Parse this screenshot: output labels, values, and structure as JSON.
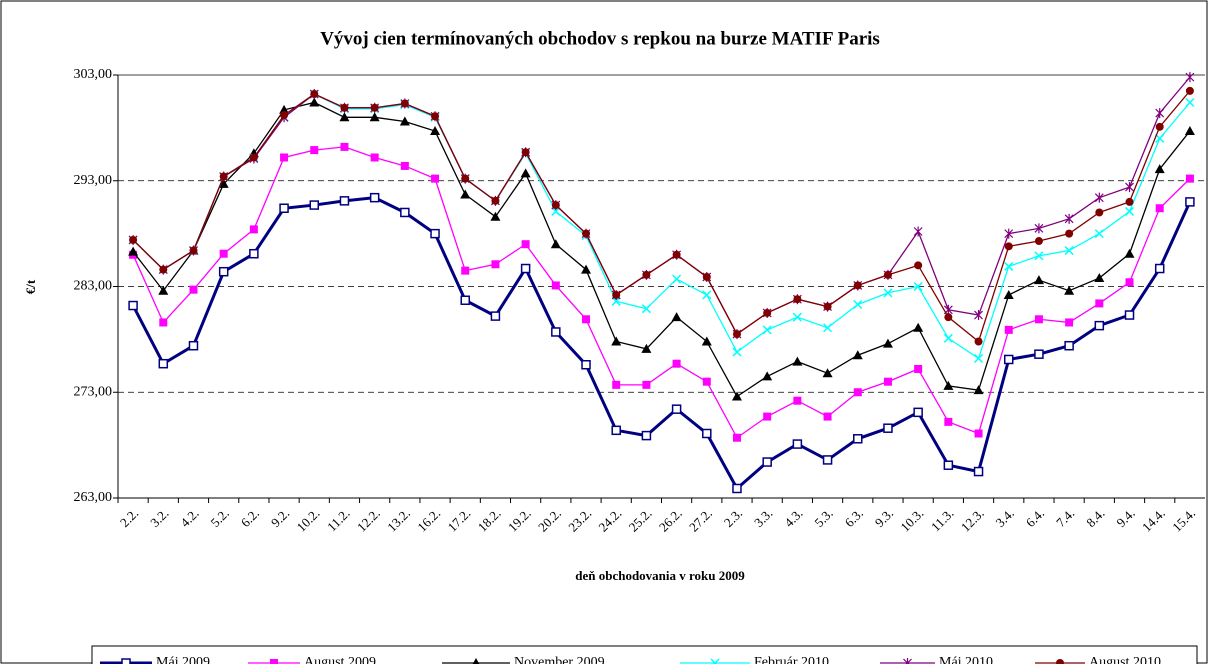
{
  "chart_data": {
    "type": "line",
    "title": "Vývoj cien termínovaných obchodov s repkou na burze MATIF Paris",
    "x_label": "deň obchodovania v roku 2009",
    "y_label": "€/t",
    "categories": [
      "2.2.",
      "3.2.",
      "4.2.",
      "5.2.",
      "6.2.",
      "9.2.",
      "10.2.",
      "11.2.",
      "12.2.",
      "13.2.",
      "16.2.",
      "17.2.",
      "18.2.",
      "19.2.",
      "20.2.",
      "23.2.",
      "24.2.",
      "25.2.",
      "26.2.",
      "27.2.",
      "2.3.",
      "3.3.",
      "4.3.",
      "5.3.",
      "6.3.",
      "9.3.",
      "10.3.",
      "11.3.",
      "12.3.",
      "3.4.",
      "6.4.",
      "7.4.",
      "8.4.",
      "9.4.",
      "14.4.",
      "15.4."
    ],
    "ylim": [
      263,
      303
    ],
    "yticks": [
      {
        "value": 263,
        "label": "263,00"
      },
      {
        "value": 273,
        "label": "273,00"
      },
      {
        "value": 283,
        "label": "283,00"
      },
      {
        "value": 293,
        "label": "293,00"
      },
      {
        "value": 303,
        "label": "303,00"
      }
    ],
    "grid": true,
    "legend": "bottom",
    "series": [
      {
        "name": "Máj  2009",
        "color": "#000080",
        "marker": "square-open",
        "values": [
          281.2,
          275.7,
          277.4,
          284.4,
          286.1,
          290.4,
          290.7,
          291.1,
          291.4,
          290.0,
          288.0,
          281.7,
          280.2,
          284.7,
          278.7,
          275.6,
          269.4,
          268.9,
          271.4,
          269.1,
          263.9,
          266.4,
          268.1,
          266.6,
          268.6,
          269.6,
          271.1,
          266.1,
          265.5,
          276.1,
          276.6,
          277.4,
          279.3,
          280.3,
          284.7,
          291.0
        ]
      },
      {
        "name": "August 2009",
        "color": "#ff00ff",
        "marker": "square",
        "values": [
          286.0,
          279.6,
          282.7,
          286.1,
          288.4,
          295.2,
          295.9,
          296.2,
          295.2,
          294.4,
          293.2,
          284.5,
          285.1,
          287.0,
          283.1,
          279.9,
          273.7,
          273.7,
          275.7,
          274.0,
          268.7,
          270.7,
          272.2,
          270.7,
          273.0,
          274.0,
          275.2,
          270.2,
          269.1,
          278.9,
          279.9,
          279.6,
          281.4,
          283.4,
          290.4,
          293.2
        ]
      },
      {
        "name": "November 2009",
        "color": "#000000",
        "marker": "triangle",
        "values": [
          286.3,
          282.6,
          286.4,
          292.7,
          295.6,
          299.7,
          300.4,
          299.0,
          299.0,
          298.6,
          297.7,
          291.7,
          289.6,
          293.7,
          287.0,
          284.6,
          277.8,
          277.1,
          280.1,
          277.8,
          272.6,
          274.5,
          275.9,
          274.8,
          276.5,
          277.6,
          279.1,
          273.6,
          273.2,
          282.2,
          283.6,
          282.6,
          283.8,
          286.1,
          294.1,
          297.7
        ]
      },
      {
        "name": "Február 2010",
        "color": "#00ffff",
        "marker": "x",
        "values": [
          287.4,
          284.6,
          286.4,
          293.4,
          295.2,
          299.0,
          301.2,
          299.8,
          299.8,
          300.2,
          299.0,
          293.2,
          291.1,
          295.6,
          290.1,
          287.8,
          281.6,
          280.9,
          283.7,
          282.2,
          276.8,
          278.9,
          280.1,
          279.1,
          281.3,
          282.4,
          283.0,
          278.1,
          276.2,
          284.9,
          285.9,
          286.4,
          288.0,
          290.1,
          297.0,
          300.4
        ]
      },
      {
        "name": "Máj  2010",
        "color": "#800080",
        "marker": "star",
        "values": [
          287.4,
          284.6,
          286.4,
          293.4,
          295.1,
          299.0,
          301.2,
          299.9,
          299.9,
          300.3,
          299.1,
          293.2,
          291.1,
          295.7,
          290.7,
          288.0,
          282.2,
          284.1,
          286.0,
          283.9,
          278.5,
          280.5,
          281.8,
          281.1,
          283.1,
          284.1,
          288.2,
          280.8,
          280.3,
          288.0,
          288.5,
          289.4,
          291.4,
          292.4,
          299.4,
          302.8
        ]
      },
      {
        "name": "August 2010",
        "color": "#800000",
        "marker": "circle",
        "values": [
          287.4,
          284.6,
          286.4,
          293.4,
          295.2,
          299.2,
          301.2,
          299.9,
          299.9,
          300.3,
          299.1,
          293.2,
          291.1,
          295.7,
          290.7,
          288.0,
          282.2,
          284.1,
          286.0,
          283.9,
          278.5,
          280.5,
          281.8,
          281.1,
          283.1,
          284.1,
          285.0,
          280.1,
          277.8,
          286.8,
          287.3,
          288.0,
          290.0,
          291.0,
          298.1,
          301.5
        ]
      }
    ]
  }
}
